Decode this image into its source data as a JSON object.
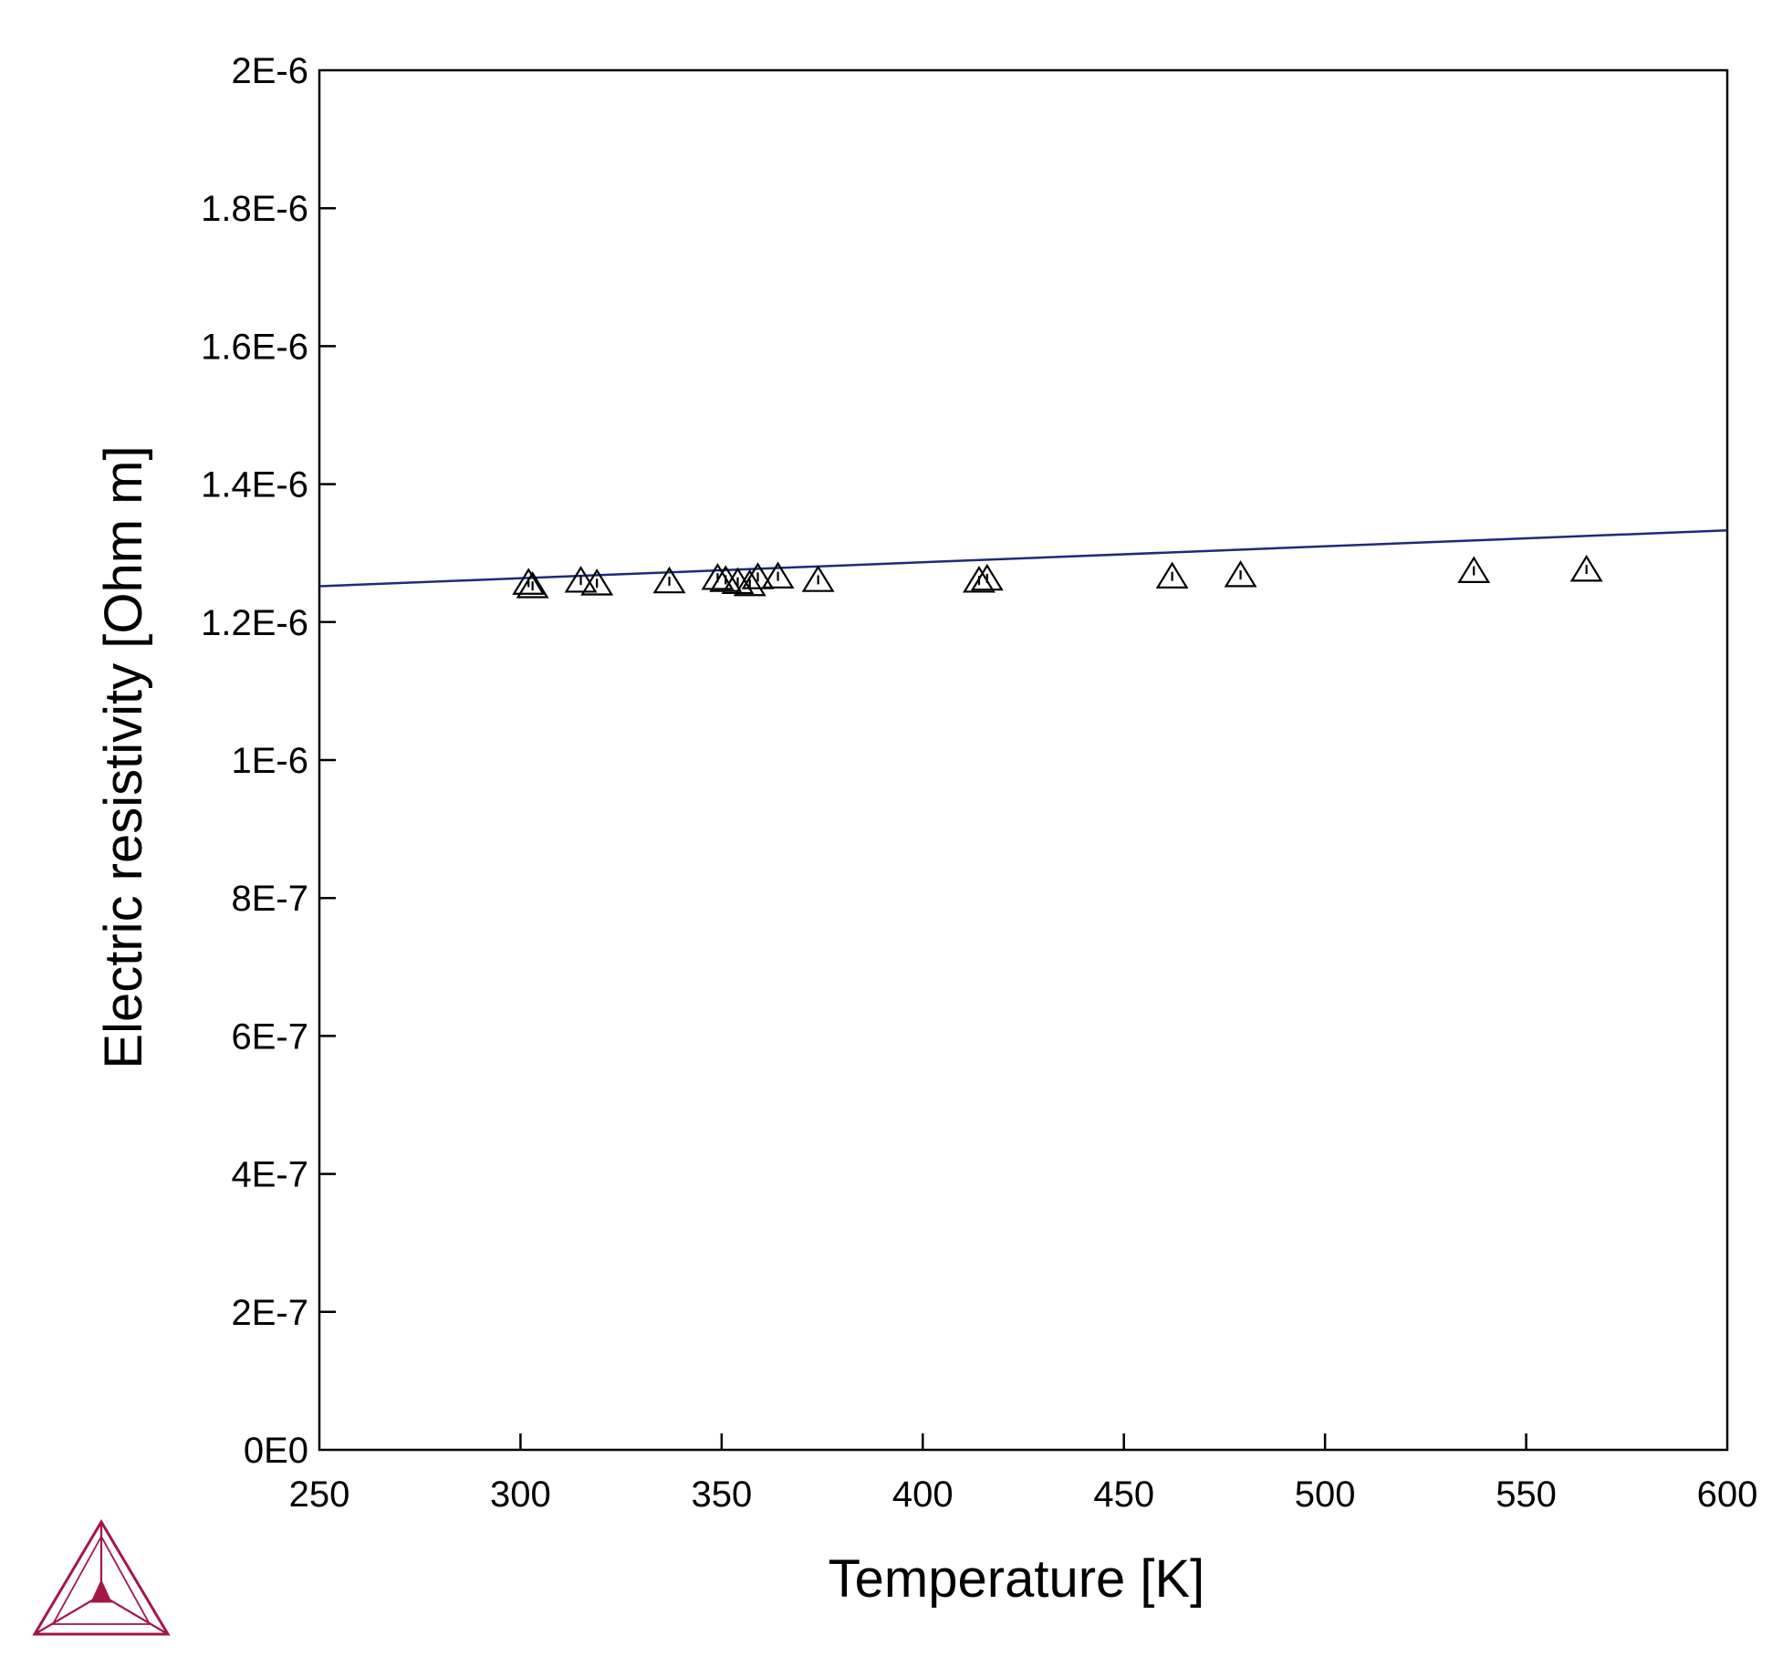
{
  "chart_data": {
    "type": "scatter",
    "xlabel": "Temperature [K]",
    "ylabel": "Electric resistivity [Ohm m]",
    "xlim": [
      250,
      600
    ],
    "ylim": [
      0,
      2e-06
    ],
    "x_ticks": [
      250,
      300,
      350,
      400,
      450,
      500,
      550,
      600
    ],
    "x_tick_labels": [
      "250",
      "300",
      "350",
      "400",
      "450",
      "500",
      "550",
      "600"
    ],
    "y_ticks": [
      0,
      2e-07,
      4e-07,
      6e-07,
      8e-07,
      1e-06,
      1.2e-06,
      1.4e-06,
      1.6e-06,
      1.8e-06,
      2e-06
    ],
    "y_tick_labels": [
      "0E0",
      "2E-7",
      "4E-7",
      "6E-7",
      "8E-7",
      "1E-6",
      "1.2E-6",
      "1.4E-6",
      "1.6E-6",
      "1.8E-6",
      "2E-6"
    ],
    "grid": false,
    "legend": "none",
    "series": [
      {
        "type": "line",
        "color": "#1f2a7a",
        "x": [
          250,
          600
        ],
        "y": [
          1.252e-06,
          1.333e-06
        ]
      },
      {
        "type": "scatter",
        "marker": "triangle-open",
        "color": "#000000",
        "points": [
          {
            "x": 302,
            "y": 1.256e-06
          },
          {
            "x": 303,
            "y": 1.251e-06
          },
          {
            "x": 315,
            "y": 1.259e-06
          },
          {
            "x": 319,
            "y": 1.255e-06
          },
          {
            "x": 337,
            "y": 1.258e-06
          },
          {
            "x": 349,
            "y": 1.263e-06
          },
          {
            "x": 351,
            "y": 1.26e-06
          },
          {
            "x": 354,
            "y": 1.257e-06
          },
          {
            "x": 357,
            "y": 1.254e-06
          },
          {
            "x": 359,
            "y": 1.264e-06
          },
          {
            "x": 364,
            "y": 1.265e-06
          },
          {
            "x": 374,
            "y": 1.26e-06
          },
          {
            "x": 414,
            "y": 1.259e-06
          },
          {
            "x": 416,
            "y": 1.262e-06
          },
          {
            "x": 462,
            "y": 1.265e-06
          },
          {
            "x": 479,
            "y": 1.267e-06
          },
          {
            "x": 537,
            "y": 1.273e-06
          },
          {
            "x": 565,
            "y": 1.275e-06
          }
        ]
      }
    ]
  },
  "logo": {
    "name": "thermo-calc-logo-icon",
    "color": "#a31745"
  }
}
